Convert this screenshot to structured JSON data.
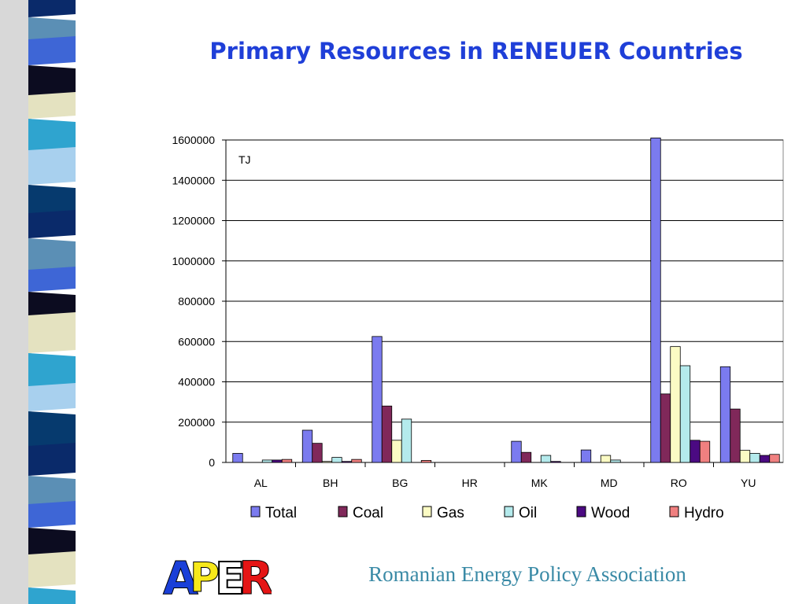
{
  "slide": {
    "title": "Primary Resources in RENEUER Countries",
    "footer": "Romanian Energy Policy Association",
    "logo_text": "APER",
    "colors": {
      "title": "#1f3fd8",
      "footer": "#3a8aa6",
      "strip": [
        "#0a2a6a",
        "#5b8fb5",
        "#3e66d6",
        "#0c0c20",
        "#e4e2c0",
        "#2fa4cf",
        "#a8d0ee",
        "#063a6e"
      ]
    }
  },
  "chart_data": {
    "type": "bar",
    "title": "",
    "unit_label": "TJ",
    "xlabel": "",
    "ylabel": "",
    "ylim": [
      0,
      1600000
    ],
    "yticks": [
      0,
      200000,
      400000,
      600000,
      800000,
      1000000,
      1200000,
      1400000,
      1600000
    ],
    "grid": true,
    "legend_position": "bottom",
    "categories": [
      "AL",
      "BH",
      "BG",
      "HR",
      "MK",
      "MD",
      "RO",
      "YU"
    ],
    "series": [
      {
        "name": "Total",
        "color": "#7b7bef",
        "values": [
          45000,
          160000,
          625000,
          0,
          105000,
          62000,
          1610000,
          475000
        ]
      },
      {
        "name": "Coal",
        "color": "#80285a",
        "values": [
          0,
          95000,
          280000,
          0,
          50000,
          0,
          340000,
          265000
        ]
      },
      {
        "name": "Gas",
        "color": "#fbfbc4",
        "values": [
          0,
          5000,
          110000,
          0,
          0,
          35000,
          575000,
          60000
        ]
      },
      {
        "name": "Oil",
        "color": "#b4eaec",
        "values": [
          12000,
          25000,
          215000,
          0,
          35000,
          12000,
          480000,
          45000
        ]
      },
      {
        "name": "Wood",
        "color": "#4b0a82",
        "values": [
          12000,
          5000,
          0,
          0,
          5000,
          0,
          110000,
          35000
        ]
      },
      {
        "name": "Hydro",
        "color": "#f08080",
        "values": [
          15000,
          15000,
          10000,
          0,
          0,
          0,
          105000,
          40000
        ]
      }
    ]
  }
}
